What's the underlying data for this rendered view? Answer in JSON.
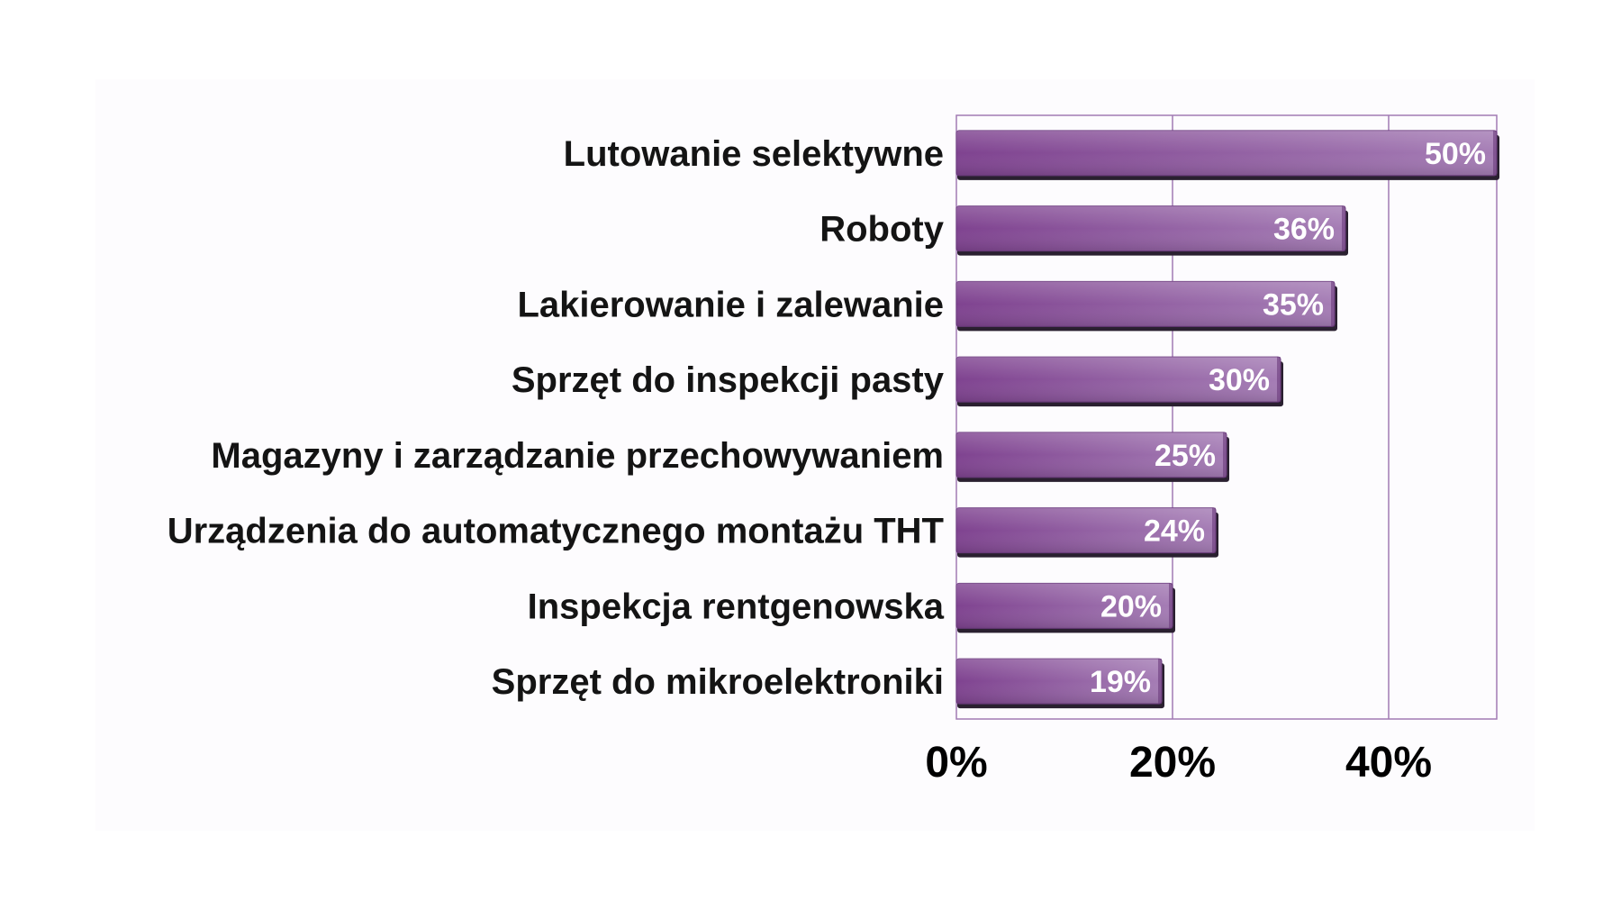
{
  "chart_data": {
    "type": "bar",
    "orientation": "horizontal",
    "categories": [
      "Lutowanie selektywne",
      "Roboty",
      "Lakierowanie i zalewanie",
      "Sprzęt do inspekcji pasty",
      "Magazyny i zarządzanie przechowywaniem",
      "Urządzenia do automatycznego montażu THT",
      "Inspekcja rentgenowska",
      "Sprzęt do mikroelektroniki"
    ],
    "values": [
      50,
      36,
      35,
      30,
      25,
      24,
      20,
      19
    ],
    "value_labels": [
      "50%",
      "36%",
      "35%",
      "30%",
      "25%",
      "24%",
      "20%",
      "19%"
    ],
    "xlim": [
      0,
      50
    ],
    "x_ticks": [
      0,
      20,
      40
    ],
    "x_tick_labels": [
      "0%",
      "20%",
      "40%"
    ],
    "grid": true,
    "legend": "none",
    "title": "",
    "xlabel": "",
    "ylabel": "",
    "bar_color": "#9a64aa",
    "frame_color": "#a27bb4"
  }
}
